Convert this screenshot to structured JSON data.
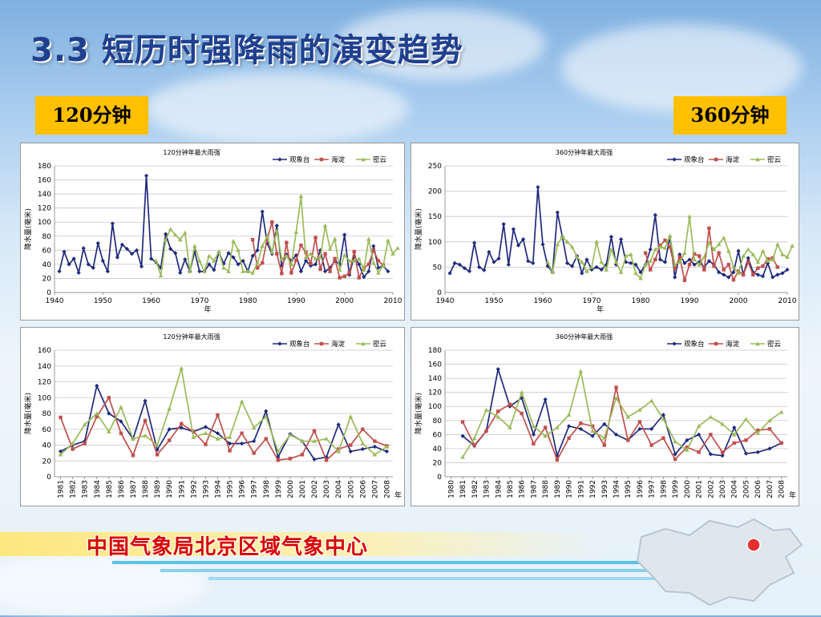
{
  "title": "3.3 短历时强降雨的演变趋势",
  "labels": {
    "left": "120分钟",
    "right": "360分钟"
  },
  "footer": "中国气象局北京区域气象中心",
  "colors": {
    "s1": "#1f2a7c",
    "s2": "#c0504d",
    "s3": "#9bbb59",
    "tag": "#ffc000",
    "title": "#1f3f8f"
  },
  "chart_data": [
    {
      "type": "line",
      "title": "120分钟年最大雨强",
      "ylabel": "降水量(毫米)",
      "xlabel": "年",
      "xlim": [
        1940,
        2010
      ],
      "xticks": [
        1940,
        1950,
        1960,
        1970,
        1980,
        1990,
        2000,
        2010
      ],
      "ylim": [
        0,
        180
      ],
      "yticks": [
        0,
        20,
        40,
        60,
        80,
        100,
        120,
        140,
        160,
        180
      ],
      "legend": "top-right",
      "series": [
        {
          "name": "观象台",
          "color": "#1f2a7c",
          "marker": "diamond",
          "x_start": 1941,
          "values": [
            30,
            58,
            40,
            48,
            28,
            63,
            40,
            35,
            70,
            45,
            30,
            98,
            50,
            68,
            62,
            55,
            60,
            37,
            166,
            48,
            43,
            35,
            83,
            62,
            56,
            28,
            47,
            30,
            58,
            30,
            30,
            40,
            32,
            57,
            41,
            56,
            50,
            40,
            45,
            30,
            52,
            60,
            115,
            70,
            55,
            95,
            38,
            54,
            45,
            53,
            30,
            45,
            38,
            40,
            60,
            30,
            35,
            45,
            40,
            82,
            25,
            52,
            40,
            22,
            30,
            66,
            35,
            38,
            30
          ]
        },
        {
          "name": "海淀",
          "color": "#c0504d",
          "marker": "square",
          "x_start": 1981,
          "values": [
            75,
            35,
            42,
            76,
            100,
            55,
            27,
            71,
            28,
            46,
            67,
            57,
            41,
            78,
            33,
            55,
            30,
            48,
            21,
            23,
            28,
            58,
            21,
            35,
            40,
            60,
            45,
            39
          ]
        },
        {
          "name": "密云",
          "color": "#9bbb59",
          "marker": "triangle",
          "x_start": 1961,
          "values": [
            45,
            24,
            75,
            90,
            82,
            75,
            85,
            30,
            66,
            45,
            30,
            52,
            45,
            58,
            35,
            30,
            73,
            60,
            30,
            30,
            28,
            42,
            66,
            80,
            57,
            88,
            48,
            52,
            40,
            86,
            137,
            50,
            55,
            48,
            50,
            95,
            62,
            76,
            32,
            53,
            45,
            45,
            48,
            32,
            76,
            42,
            28,
            38,
            74,
            55,
            63
          ]
        }
      ]
    },
    {
      "type": "line",
      "title": "360分钟年最大雨强",
      "ylabel": "降水量(毫米)",
      "xlabel": "年",
      "xlim": [
        1940,
        2010
      ],
      "xticks": [
        1940,
        1950,
        1960,
        1970,
        1980,
        1990,
        2000,
        2010
      ],
      "ylim": [
        0,
        250
      ],
      "yticks": [
        0,
        50,
        100,
        150,
        200,
        250
      ],
      "legend": "top-right",
      "series": [
        {
          "name": "观象台",
          "color": "#1f2a7c",
          "marker": "diamond",
          "x_start": 1941,
          "values": [
            38,
            58,
            55,
            48,
            42,
            98,
            50,
            44,
            80,
            60,
            67,
            135,
            55,
            125,
            93,
            105,
            62,
            58,
            208,
            95,
            52,
            40,
            158,
            110,
            58,
            52,
            72,
            38,
            65,
            45,
            50,
            45,
            55,
            110,
            55,
            105,
            60,
            58,
            55,
            40,
            55,
            85,
            153,
            65,
            60,
            110,
            30,
            75,
            58,
            65,
            55,
            60,
            50,
            62,
            55,
            40,
            35,
            30,
            40,
            82,
            35,
            68,
            40,
            35,
            32,
            58,
            30,
            35,
            38,
            45
          ]
        },
        {
          "name": "海淀",
          "color": "#c0504d",
          "marker": "square",
          "x_start": 1981,
          "values": [
            78,
            45,
            65,
            93,
            103,
            90,
            47,
            70,
            24,
            55,
            76,
            72,
            45,
            127,
            52,
            78,
            45,
            55,
            25,
            42,
            35,
            60,
            35,
            48,
            52,
            66,
            68,
            50
          ]
        },
        {
          "name": "密云",
          "color": "#9bbb59",
          "marker": "triangle",
          "x_start": 1961,
          "values": [
            60,
            40,
            95,
            110,
            100,
            90,
            70,
            60,
            42,
            50,
            100,
            60,
            45,
            85,
            60,
            40,
            72,
            75,
            38,
            28,
            55,
            62,
            85,
            90,
            88,
            112,
            55,
            60,
            78,
            150,
            65,
            55,
            70,
            98,
            85,
            95,
            108,
            82,
            50,
            38,
            72,
            85,
            75,
            60,
            82,
            62,
            65,
            95,
            75,
            70,
            92
          ]
        }
      ]
    },
    {
      "type": "line",
      "title": "120分钟年最大雨强",
      "ylabel": "降水量(毫米)",
      "xlabel": "年",
      "categories": [
        "1981",
        "1982",
        "1983",
        "1984",
        "1985",
        "1986",
        "1987",
        "1988",
        "1989",
        "1990",
        "1991",
        "1992",
        "1993",
        "1994",
        "1995",
        "1996",
        "1997",
        "1998",
        "1999",
        "2000",
        "2001",
        "2002",
        "2003",
        "2004",
        "2005",
        "2006",
        "2007",
        "2008"
      ],
      "ylim": [
        0,
        160
      ],
      "yticks": [
        0,
        20,
        40,
        60,
        80,
        100,
        120,
        140,
        160
      ],
      "legend": "top-right",
      "series": [
        {
          "name": "观象台",
          "color": "#1f2a7c",
          "marker": "diamond",
          "values": [
            32,
            40,
            45,
            115,
            80,
            70,
            48,
            96,
            34,
            60,
            62,
            57,
            63,
            55,
            42,
            42,
            45,
            83,
            25,
            54,
            45,
            22,
            25,
            66,
            32,
            35,
            38,
            32
          ]
        },
        {
          "name": "海淀",
          "color": "#c0504d",
          "marker": "square",
          "values": [
            75,
            35,
            42,
            76,
            100,
            55,
            27,
            71,
            28,
            46,
            67,
            57,
            41,
            78,
            33,
            55,
            30,
            48,
            21,
            23,
            28,
            58,
            21,
            35,
            40,
            60,
            45,
            39
          ]
        },
        {
          "name": "密云",
          "color": "#9bbb59",
          "marker": "triangle",
          "values": [
            28,
            42,
            66,
            80,
            57,
            88,
            48,
            52,
            40,
            86,
            137,
            50,
            55,
            48,
            50,
            95,
            62,
            76,
            32,
            53,
            45,
            45,
            48,
            32,
            76,
            42,
            28,
            38
          ]
        }
      ]
    },
    {
      "type": "line",
      "title": "360分钟年最大雨强",
      "ylabel": "降水量(毫米)",
      "xlabel": "年",
      "categories": [
        "1980",
        "1981",
        "1982",
        "1983",
        "1984",
        "1985",
        "1986",
        "1987",
        "1988",
        "1989",
        "1990",
        "1991",
        "1992",
        "1993",
        "1994",
        "1995",
        "1996",
        "1997",
        "1998",
        "1999",
        "2000",
        "2001",
        "2002",
        "2003",
        "2004",
        "2005",
        "2006",
        "2007",
        "2008"
      ],
      "ylim": [
        0,
        180
      ],
      "yticks": [
        0,
        20,
        40,
        60,
        80,
        100,
        120,
        140,
        160,
        180
      ],
      "legend": "top-right",
      "series": [
        {
          "name": "观象台",
          "color": "#1f2a7c",
          "marker": "diamond",
          "values": [
            null,
            58,
            44,
            65,
            153,
            100,
            112,
            60,
            110,
            30,
            72,
            68,
            58,
            75,
            60,
            52,
            68,
            68,
            88,
            32,
            52,
            60,
            32,
            30,
            70,
            33,
            35,
            40,
            48
          ]
        },
        {
          "name": "海淀",
          "color": "#c0504d",
          "marker": "square",
          "values": [
            null,
            78,
            45,
            65,
            93,
            103,
            90,
            47,
            70,
            24,
            55,
            76,
            72,
            45,
            127,
            52,
            78,
            45,
            55,
            25,
            42,
            35,
            60,
            35,
            48,
            52,
            66,
            68,
            48
          ]
        },
        {
          "name": "密云",
          "color": "#9bbb59",
          "marker": "triangle",
          "values": [
            null,
            28,
            55,
            95,
            85,
            70,
            120,
            72,
            58,
            70,
            88,
            150,
            65,
            55,
            112,
            85,
            95,
            108,
            82,
            50,
            38,
            72,
            85,
            75,
            60,
            82,
            62,
            80,
            92
          ]
        }
      ]
    }
  ]
}
